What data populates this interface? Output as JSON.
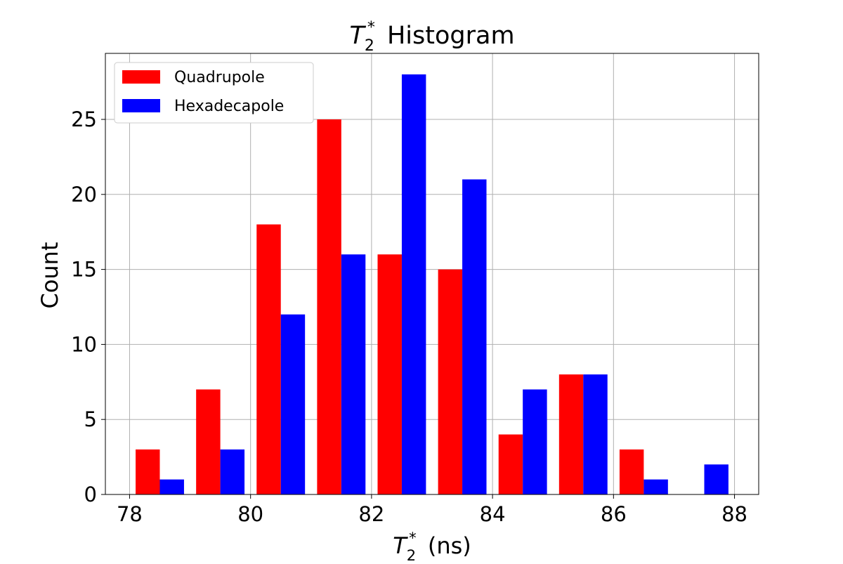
{
  "chart_data": {
    "type": "bar",
    "title": {
      "base": "T",
      "sub": "2",
      "sup": "*",
      "rest": " Histogram"
    },
    "xlabel": {
      "base": "T",
      "sub": "2",
      "sup": "*",
      "rest": " (ns)"
    },
    "ylabel": "Count",
    "xlim": [
      77.6,
      88.4
    ],
    "ylim": [
      0,
      29.4
    ],
    "xticks": [
      78,
      80,
      82,
      84,
      86,
      88
    ],
    "yticks": [
      0,
      5,
      10,
      15,
      20,
      25
    ],
    "grid": true,
    "legend_position": "upper-left",
    "bin_width": 1,
    "bin_starts": [
      78,
      79,
      80,
      81,
      82,
      83,
      84,
      85,
      86,
      87
    ],
    "series": [
      {
        "name": "Quadrupole",
        "color": "#ff0000",
        "values": [
          3,
          7,
          18,
          25,
          16,
          15,
          4,
          8,
          3,
          0
        ]
      },
      {
        "name": "Hexadecapole",
        "color": "#0000ff",
        "values": [
          1,
          3,
          12,
          16,
          28,
          21,
          7,
          8,
          1,
          2
        ]
      }
    ]
  }
}
